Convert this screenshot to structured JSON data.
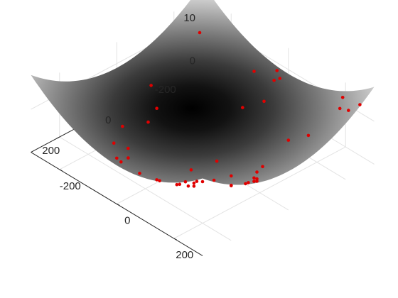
{
  "chart_data": {
    "type": "surface3d-scatter",
    "title": "",
    "xlabel": "",
    "ylabel": "",
    "zlabel": "",
    "colormap": "gray",
    "surface": "paraboloid bowl, minimum near (0, 0)",
    "xlim": [
      -300,
      300
    ],
    "ylim": [
      -300,
      300
    ],
    "zlim": [
      0,
      15
    ],
    "x_ticks": [
      {
        "value": -200,
        "label": "-200"
      },
      {
        "value": 0,
        "label": "0"
      },
      {
        "value": 200,
        "label": "200"
      }
    ],
    "y_ticks": [
      {
        "value": -200,
        "label": "-200"
      },
      {
        "value": 0,
        "label": "0"
      },
      {
        "value": 200,
        "label": "200"
      }
    ],
    "z_ticks": [
      {
        "value": 0,
        "label": "0"
      },
      {
        "value": 10,
        "label": "10"
      }
    ],
    "grid": true,
    "marker_color": "#e00000",
    "series": [
      {
        "values": [
          {
            "x": -300,
            "y": -300
          },
          {
            "x": -297,
            "y": -292
          },
          {
            "x": -290,
            "y": -270
          },
          {
            "x": -240,
            "y": -230
          },
          {
            "x": -80,
            "y": -260
          },
          {
            "x": -30,
            "y": -290
          },
          {
            "x": -20,
            "y": -270
          },
          {
            "x": -10,
            "y": -280
          },
          {
            "x": -5,
            "y": -220
          },
          {
            "x": -40,
            "y": -180
          },
          {
            "x": -230,
            "y": -50
          },
          {
            "x": -180,
            "y": -20
          },
          {
            "x": -160,
            "y": 30
          },
          {
            "x": -170,
            "y": 110
          },
          {
            "x": -100,
            "y": 160
          },
          {
            "x": -50,
            "y": 250
          },
          {
            "x": -30,
            "y": 255
          },
          {
            "x": 40,
            "y": 260
          },
          {
            "x": 100,
            "y": 250
          },
          {
            "x": 150,
            "y": 240
          },
          {
            "x": 180,
            "y": 260
          },
          {
            "x": 200,
            "y": 230
          },
          {
            "x": 240,
            "y": 270
          },
          {
            "x": 260,
            "y": 280
          },
          {
            "x": 270,
            "y": 270
          },
          {
            "x": 300,
            "y": 260
          },
          {
            "x": 40,
            "y": -10
          },
          {
            "x": 30,
            "y": 70
          },
          {
            "x": 130,
            "y": 30
          },
          {
            "x": 170,
            "y": -40
          },
          {
            "x": 180,
            "y": -10
          },
          {
            "x": 210,
            "y": 30
          },
          {
            "x": 230,
            "y": 40
          },
          {
            "x": 240,
            "y": 80
          },
          {
            "x": 250,
            "y": 70
          },
          {
            "x": 220,
            "y": 120
          },
          {
            "x": 280,
            "y": 130
          },
          {
            "x": 300,
            "y": 110
          },
          {
            "x": 270,
            "y": 170
          },
          {
            "x": 150,
            "y": -150
          },
          {
            "x": 200,
            "y": -170
          },
          {
            "x": 230,
            "y": -250
          },
          {
            "x": 210,
            "y": -280
          },
          {
            "x": 270,
            "y": -240
          },
          {
            "x": 300,
            "y": -250
          },
          {
            "x": -120,
            "y": 190
          },
          {
            "x": -60,
            "y": 200
          },
          {
            "x": 90,
            "y": 150
          },
          {
            "x": 150,
            "y": 200
          },
          {
            "x": 130,
            "y": 290
          }
        ]
      }
    ]
  }
}
